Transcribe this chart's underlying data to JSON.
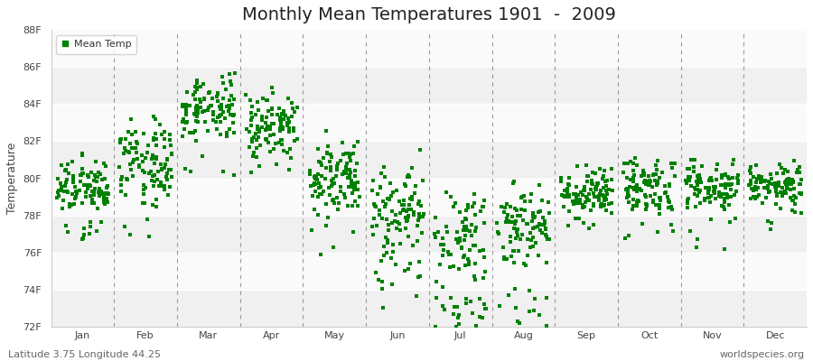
{
  "title": "Monthly Mean Temperatures 1901  -  2009",
  "ylabel": "Temperature",
  "ylim": [
    72,
    88
  ],
  "yticks": [
    72,
    74,
    76,
    78,
    80,
    82,
    84,
    86,
    88
  ],
  "ytick_labels": [
    "72F",
    "74F",
    "76F",
    "78F",
    "80F",
    "82F",
    "84F",
    "86F",
    "88F"
  ],
  "months": [
    "Jan",
    "Feb",
    "Mar",
    "Apr",
    "May",
    "Jun",
    "Jul",
    "Aug",
    "Sep",
    "Oct",
    "Nov",
    "Dec"
  ],
  "month_means": [
    79.5,
    81.0,
    83.8,
    83.0,
    80.2,
    78.3,
    76.8,
    77.4,
    79.2,
    79.5,
    79.5,
    79.5
  ],
  "month_stds": [
    0.7,
    1.1,
    0.9,
    0.8,
    1.0,
    1.1,
    1.3,
    1.1,
    0.6,
    0.7,
    0.8,
    0.6
  ],
  "month_extra_low": [
    1.0,
    0.5,
    0.5,
    0.5,
    0.5,
    1.5,
    3.0,
    1.5,
    0.3,
    0.3,
    0.5,
    0.3
  ],
  "n_years": 109,
  "seed": 12345,
  "marker_color": "#008000",
  "marker_size": 2.5,
  "bg_color": "#f5f5f5",
  "band_color1": "#f0f0f0",
  "band_color2": "#fafafa",
  "legend_label": "Mean Temp",
  "bottom_left": "Latitude 3.75 Longitude 44.25",
  "bottom_right": "worldspecies.org",
  "font_size_title": 14,
  "font_size_axis": 9,
  "font_size_tick": 8,
  "font_size_footer": 8
}
